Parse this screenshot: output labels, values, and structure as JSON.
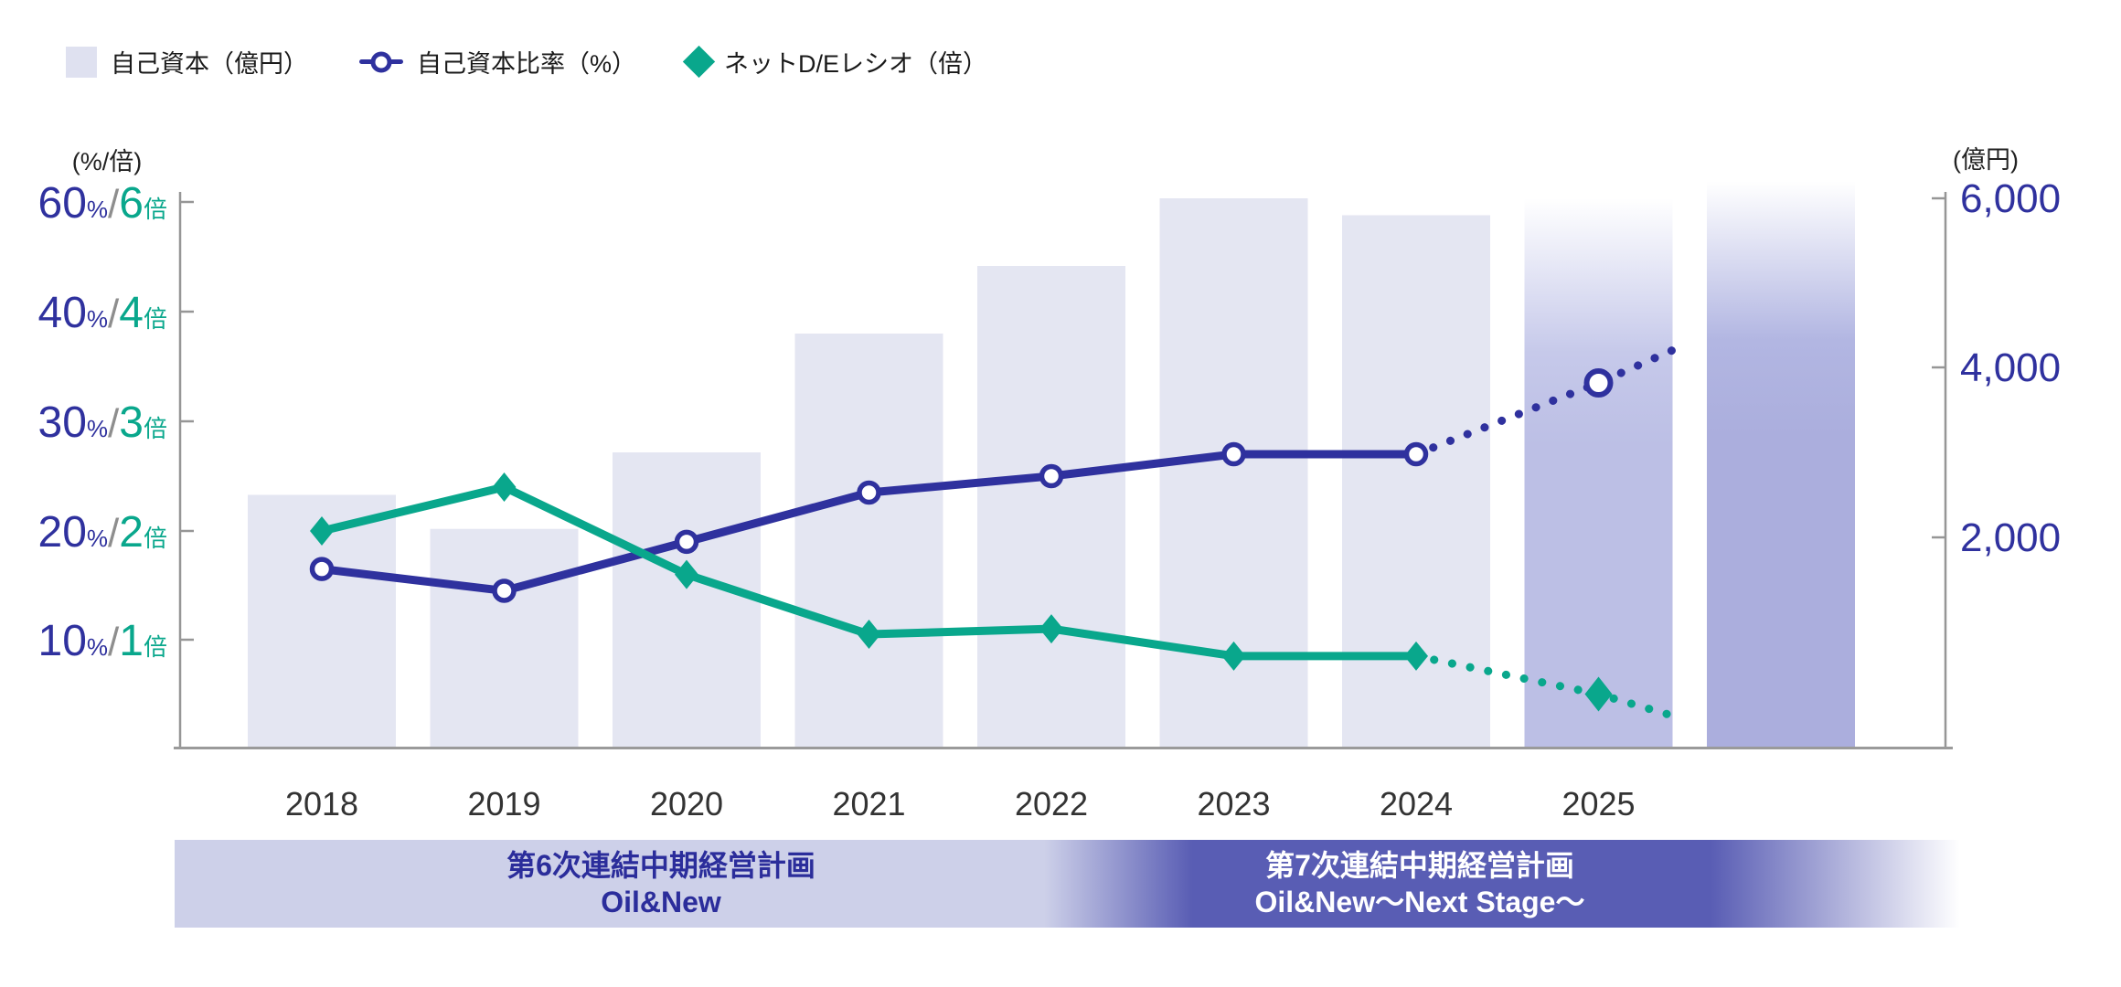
{
  "legend": {
    "items": [
      {
        "id": "equity",
        "label": "自己資本（億円）",
        "marker": "bar-swatch"
      },
      {
        "id": "equity-ratio",
        "label": "自己資本比率（%）",
        "marker": "open-circle"
      },
      {
        "id": "net-de-ratio",
        "label": "ネットD/Eレシオ（倍）",
        "marker": "diamond"
      }
    ]
  },
  "axes": {
    "left": {
      "title": "(%/倍)",
      "pct_suffix": "%",
      "slash": "/",
      "bai_suffix": "倍",
      "ticks": [
        {
          "pct": 60,
          "bai": 6
        },
        {
          "pct": 40,
          "bai": 4
        },
        {
          "pct": 30,
          "bai": 3
        },
        {
          "pct": 20,
          "bai": 2
        },
        {
          "pct": 10,
          "bai": 1
        }
      ]
    },
    "right": {
      "title": "(億円)",
      "ticks": [
        {
          "value": 6000,
          "label": "6,000"
        },
        {
          "value": 4000,
          "label": "4,000"
        },
        {
          "value": 2000,
          "label": "2,000"
        }
      ]
    }
  },
  "chart_data": {
    "type": "bar+line combo, dual axis",
    "categories": [
      "2018",
      "2019",
      "2020",
      "2021",
      "2022",
      "2023",
      "2024",
      "2025"
    ],
    "series": [
      {
        "name": "自己資本（億円）",
        "type": "bar",
        "axis": "right",
        "unit": "億円",
        "values": [
          2500,
          2100,
          3000,
          4400,
          5200,
          6000,
          5800,
          6000
        ],
        "forecast_from_index": 7,
        "extra_unlabeled_forecast_bar": 6200
      },
      {
        "name": "自己資本比率（%）",
        "type": "line",
        "axis": "left",
        "unit": "%",
        "marker": "open-circle",
        "pct_per_unit": 1,
        "values": [
          16.5,
          14.5,
          19,
          23.5,
          25,
          27,
          27,
          33.5
        ],
        "solid_until_index": 6,
        "projection_end_value": 36.5
      },
      {
        "name": "ネットD/Eレシオ（倍）",
        "type": "line",
        "axis": "left",
        "unit": "倍",
        "marker": "diamond",
        "pct_per_unit": 10,
        "values": [
          2.0,
          2.4,
          1.6,
          1.05,
          1.1,
          0.85,
          0.85,
          0.5
        ],
        "solid_until_index": 6,
        "projection_end_value": 0.3
      }
    ],
    "left_axis_note": "shared %/倍 axis, equally-spaced ticks 10/20/30/40/60 (non-linear top)",
    "legend_position": "top-left",
    "grid": false
  },
  "banners": [
    {
      "line1": "第6次連結中期経営計画",
      "line2": "Oil&New"
    },
    {
      "line1": "第7次連結中期経営計画",
      "line2": "Oil&New〜Next Stage〜"
    }
  ],
  "colors": {
    "bar": "#e4e6f2",
    "bar_forecast": "#bcbfe5",
    "bar_forecast_dark": "#abaedd",
    "indigo": "#2f319e",
    "teal": "#09a78c",
    "axis_gray": "#969696",
    "slash_gray": "#8e8e8e",
    "year_text": "#333333"
  }
}
